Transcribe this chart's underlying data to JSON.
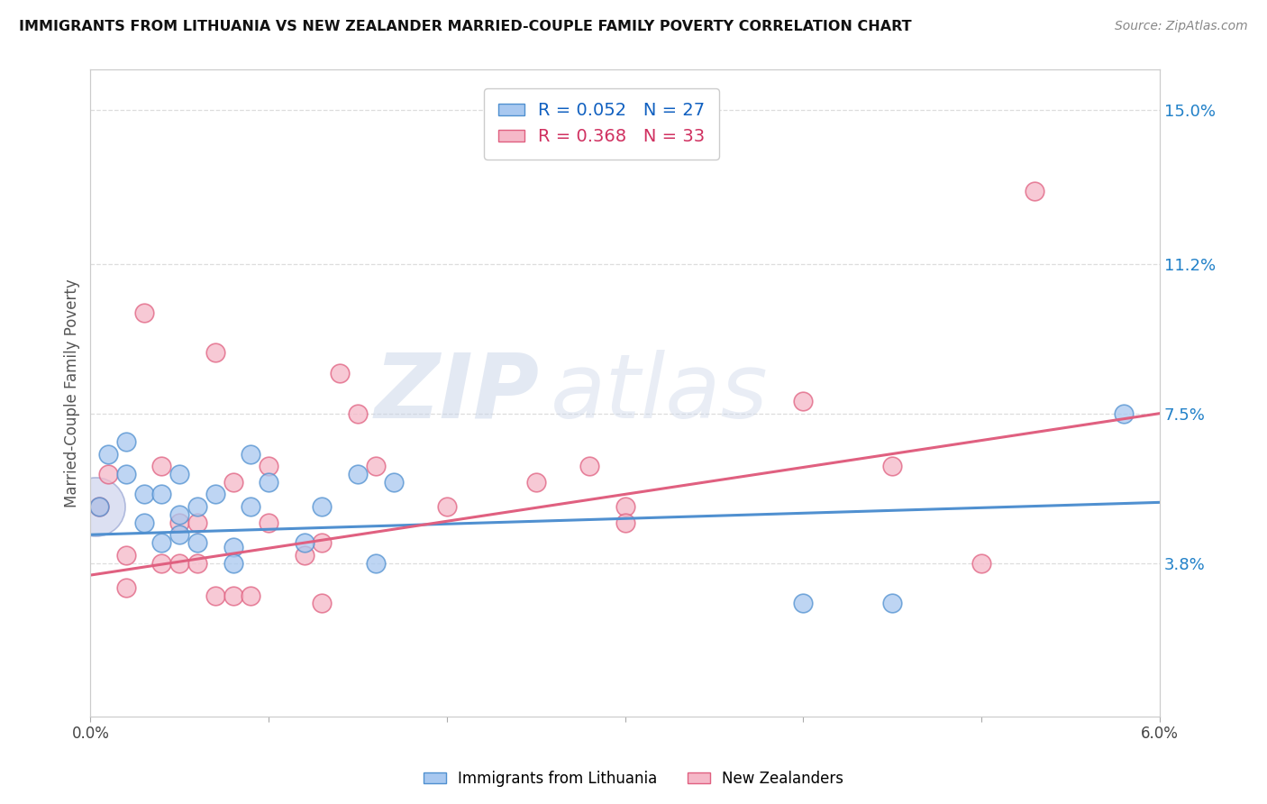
{
  "title": "IMMIGRANTS FROM LITHUANIA VS NEW ZEALANDER MARRIED-COUPLE FAMILY POVERTY CORRELATION CHART",
  "source": "Source: ZipAtlas.com",
  "ylabel": "Married-Couple Family Poverty",
  "legend_label1": "Immigrants from Lithuania",
  "legend_label2": "New Zealanders",
  "r1": 0.052,
  "n1": 27,
  "r2": 0.368,
  "n2": 33,
  "xmin": 0.0,
  "xmax": 0.06,
  "ymin": 0.0,
  "ymax": 0.16,
  "yticks": [
    0.038,
    0.075,
    0.112,
    0.15
  ],
  "ytick_labels": [
    "3.8%",
    "7.5%",
    "11.2%",
    "15.0%"
  ],
  "xticks": [
    0.0,
    0.01,
    0.02,
    0.03,
    0.04,
    0.05,
    0.06
  ],
  "xtick_labels": [
    "0.0%",
    "",
    "",
    "",
    "",
    "",
    "6.0%"
  ],
  "color_blue": "#A8C8F0",
  "color_pink": "#F5B8C8",
  "color_blue_line": "#5090D0",
  "color_pink_line": "#E06080",
  "color_blue_dark": "#1060C0",
  "color_pink_dark": "#D03060",
  "blue_x": [
    0.0005,
    0.001,
    0.002,
    0.002,
    0.003,
    0.003,
    0.004,
    0.004,
    0.005,
    0.005,
    0.005,
    0.006,
    0.006,
    0.007,
    0.008,
    0.008,
    0.009,
    0.009,
    0.01,
    0.012,
    0.013,
    0.015,
    0.016,
    0.017,
    0.04,
    0.045,
    0.058
  ],
  "blue_y": [
    0.052,
    0.065,
    0.068,
    0.06,
    0.055,
    0.048,
    0.055,
    0.043,
    0.06,
    0.05,
    0.045,
    0.052,
    0.043,
    0.055,
    0.042,
    0.038,
    0.065,
    0.052,
    0.058,
    0.043,
    0.052,
    0.06,
    0.038,
    0.058,
    0.028,
    0.028,
    0.075
  ],
  "pink_x": [
    0.0005,
    0.001,
    0.002,
    0.002,
    0.003,
    0.004,
    0.004,
    0.005,
    0.005,
    0.006,
    0.006,
    0.007,
    0.007,
    0.008,
    0.008,
    0.009,
    0.01,
    0.01,
    0.012,
    0.013,
    0.013,
    0.014,
    0.015,
    0.016,
    0.02,
    0.025,
    0.028,
    0.03,
    0.03,
    0.04,
    0.045,
    0.05,
    0.053
  ],
  "pink_y": [
    0.052,
    0.06,
    0.04,
    0.032,
    0.1,
    0.062,
    0.038,
    0.048,
    0.038,
    0.048,
    0.038,
    0.09,
    0.03,
    0.058,
    0.03,
    0.03,
    0.062,
    0.048,
    0.04,
    0.043,
    0.028,
    0.085,
    0.075,
    0.062,
    0.052,
    0.058,
    0.062,
    0.052,
    0.048,
    0.078,
    0.062,
    0.038,
    0.13
  ],
  "blue_trend_x": [
    0.0,
    0.06
  ],
  "blue_trend_y": [
    0.045,
    0.053
  ],
  "pink_trend_x": [
    0.0,
    0.06
  ],
  "pink_trend_y": [
    0.035,
    0.075
  ],
  "watermark_zip": "ZIP",
  "watermark_atlas": "atlas",
  "background_color": "#FFFFFF",
  "grid_color": "#DDDDDD"
}
